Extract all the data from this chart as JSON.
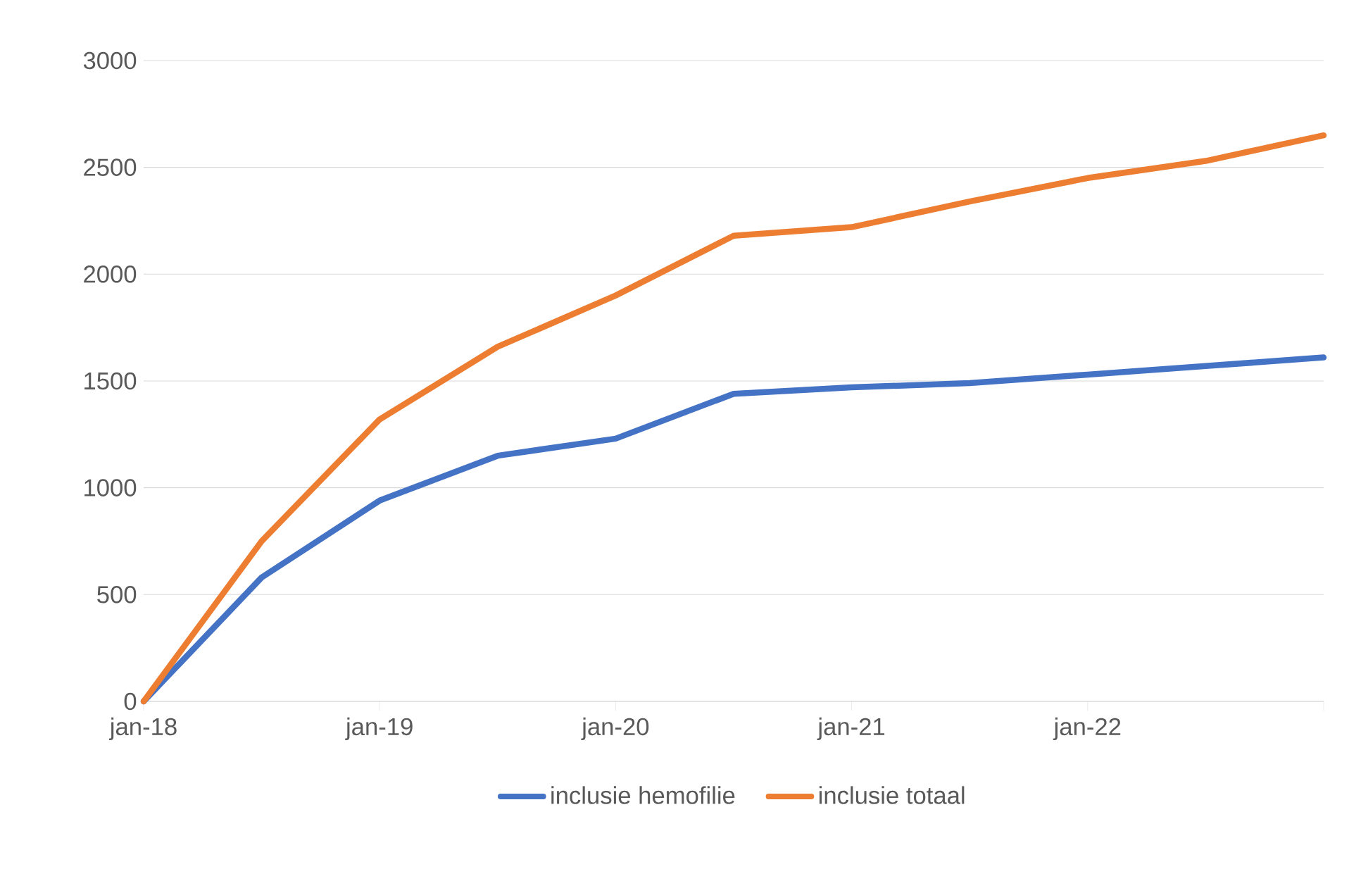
{
  "chart_data": {
    "type": "line",
    "x": [
      "2018-01",
      "2018-07",
      "2019-01",
      "2019-07",
      "2020-01",
      "2020-07",
      "2021-01",
      "2021-07",
      "2022-01",
      "2022-07",
      "2023-01"
    ],
    "series": [
      {
        "name": "inclusie hemofilie",
        "color": "#4472c4",
        "values": [
          0,
          580,
          940,
          1150,
          1230,
          1440,
          1470,
          1490,
          1530,
          1570,
          1610
        ]
      },
      {
        "name": "inclusie totaal",
        "color": "#ed7d31",
        "values": [
          0,
          750,
          1320,
          1660,
          1900,
          2180,
          2220,
          2340,
          2450,
          2530,
          2650
        ]
      }
    ],
    "xlim": [
      "2018-01",
      "2023-01"
    ],
    "xticks": [
      {
        "value": "2018-01",
        "label": "jan-18"
      },
      {
        "value": "2019-01",
        "label": "jan-19"
      },
      {
        "value": "2020-01",
        "label": "jan-20"
      },
      {
        "value": "2021-01",
        "label": "jan-21"
      },
      {
        "value": "2022-01",
        "label": "jan-22"
      },
      {
        "value": "2023-01",
        "label": null
      }
    ],
    "ylim": [
      0,
      3000
    ],
    "yticks": [
      0,
      500,
      1000,
      1500,
      2000,
      2500,
      3000
    ],
    "grid": "y",
    "legend": "bottom",
    "marker": "none",
    "line_style": "solid"
  }
}
